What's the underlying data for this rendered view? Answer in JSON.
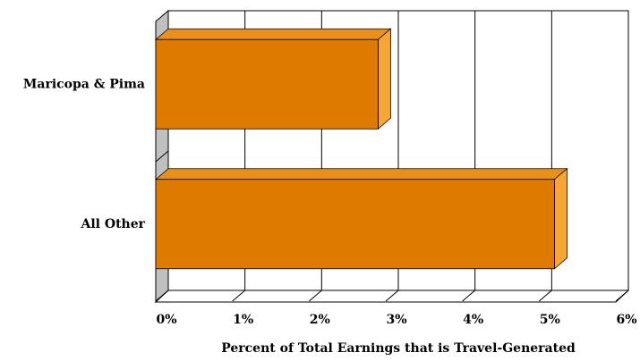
{
  "chart_data": {
    "type": "bar",
    "orientation": "horizontal",
    "categories": [
      "Maricopa & Pima",
      "All Other"
    ],
    "values": [
      2.9,
      5.2
    ],
    "color": "#df7a00",
    "xlabel": "Percent of Total Earnings that is Travel-Generated",
    "xlim": [
      0,
      6
    ],
    "xticks": [
      {
        "value": 0,
        "label": "0%"
      },
      {
        "value": 1,
        "label": "1%"
      },
      {
        "value": 2,
        "label": "2%"
      },
      {
        "value": 3,
        "label": "3%"
      },
      {
        "value": 4,
        "label": "4%"
      },
      {
        "value": 5,
        "label": "5%"
      },
      {
        "value": 6,
        "label": "6%"
      }
    ],
    "grid": true
  }
}
